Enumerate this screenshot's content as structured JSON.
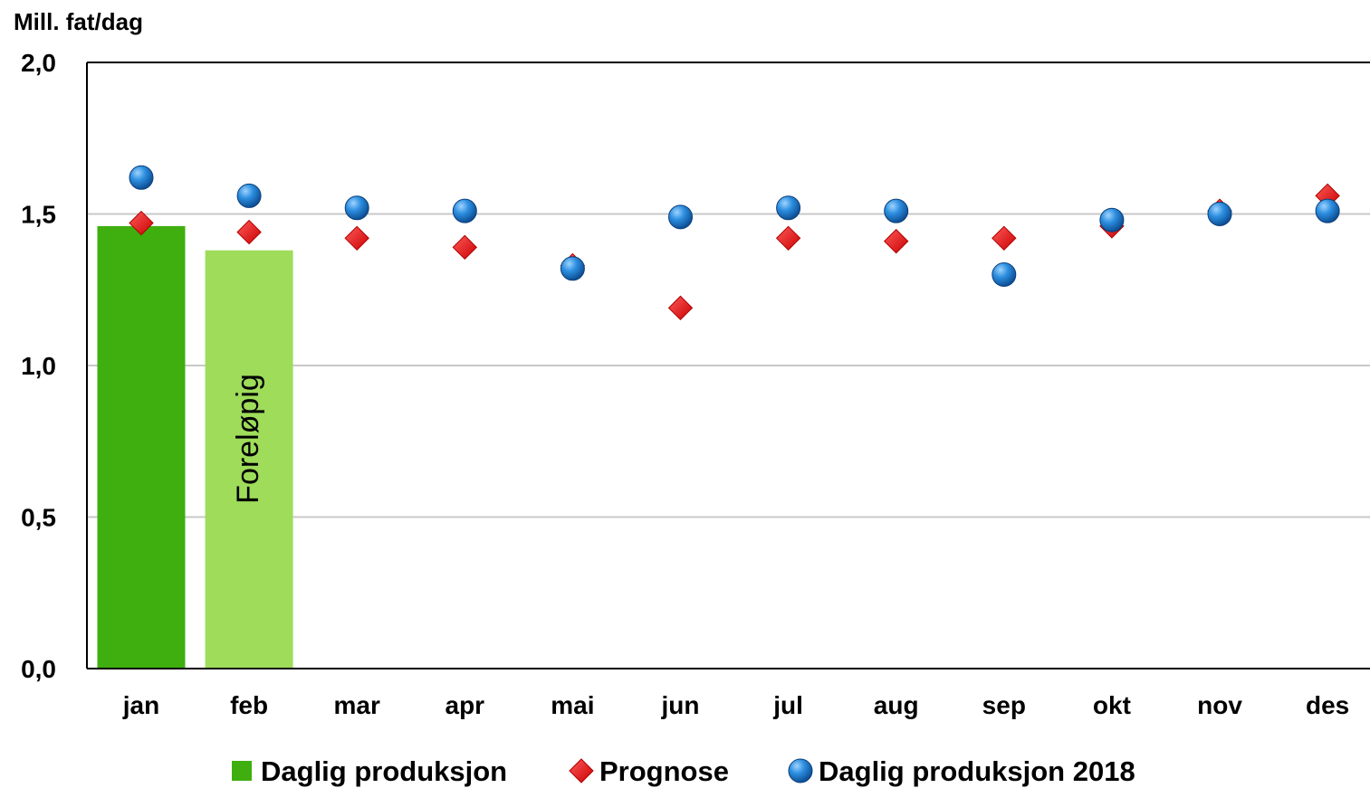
{
  "chart_data": {
    "type": "bar",
    "ylabel": "Mill. fat/dag",
    "ylim": [
      0,
      2.0
    ],
    "y_ticks": [
      "0,0",
      "0,5",
      "1,0",
      "1,5",
      "2,0"
    ],
    "y_tick_values": [
      0,
      0.5,
      1.0,
      1.5,
      2.0
    ],
    "grid": true,
    "categories": [
      "jan",
      "feb",
      "mar",
      "apr",
      "mai",
      "jun",
      "jul",
      "aug",
      "sep",
      "okt",
      "nov",
      "des"
    ],
    "series": [
      {
        "name": "Daglig produksjon",
        "kind": "bar",
        "colors": [
          "#3fae0f",
          "#9edc5a"
        ],
        "values": [
          1.46,
          1.38,
          null,
          null,
          null,
          null,
          null,
          null,
          null,
          null,
          null,
          null
        ]
      },
      {
        "name": "Prognose",
        "kind": "marker-diamond",
        "color": "#e8000b",
        "values": [
          1.47,
          1.44,
          1.42,
          1.39,
          1.33,
          1.19,
          1.42,
          1.41,
          1.42,
          1.46,
          1.51,
          1.56
        ]
      },
      {
        "name": "Daglig produksjon 2018",
        "kind": "marker-circle",
        "color": "#1a75c4",
        "values": [
          1.62,
          1.56,
          1.52,
          1.51,
          1.32,
          1.49,
          1.52,
          1.51,
          1.3,
          1.48,
          1.5,
          1.51
        ]
      }
    ],
    "annotations": [
      {
        "category": "feb",
        "text": "Foreløpig"
      }
    ],
    "legend_position": "bottom"
  }
}
